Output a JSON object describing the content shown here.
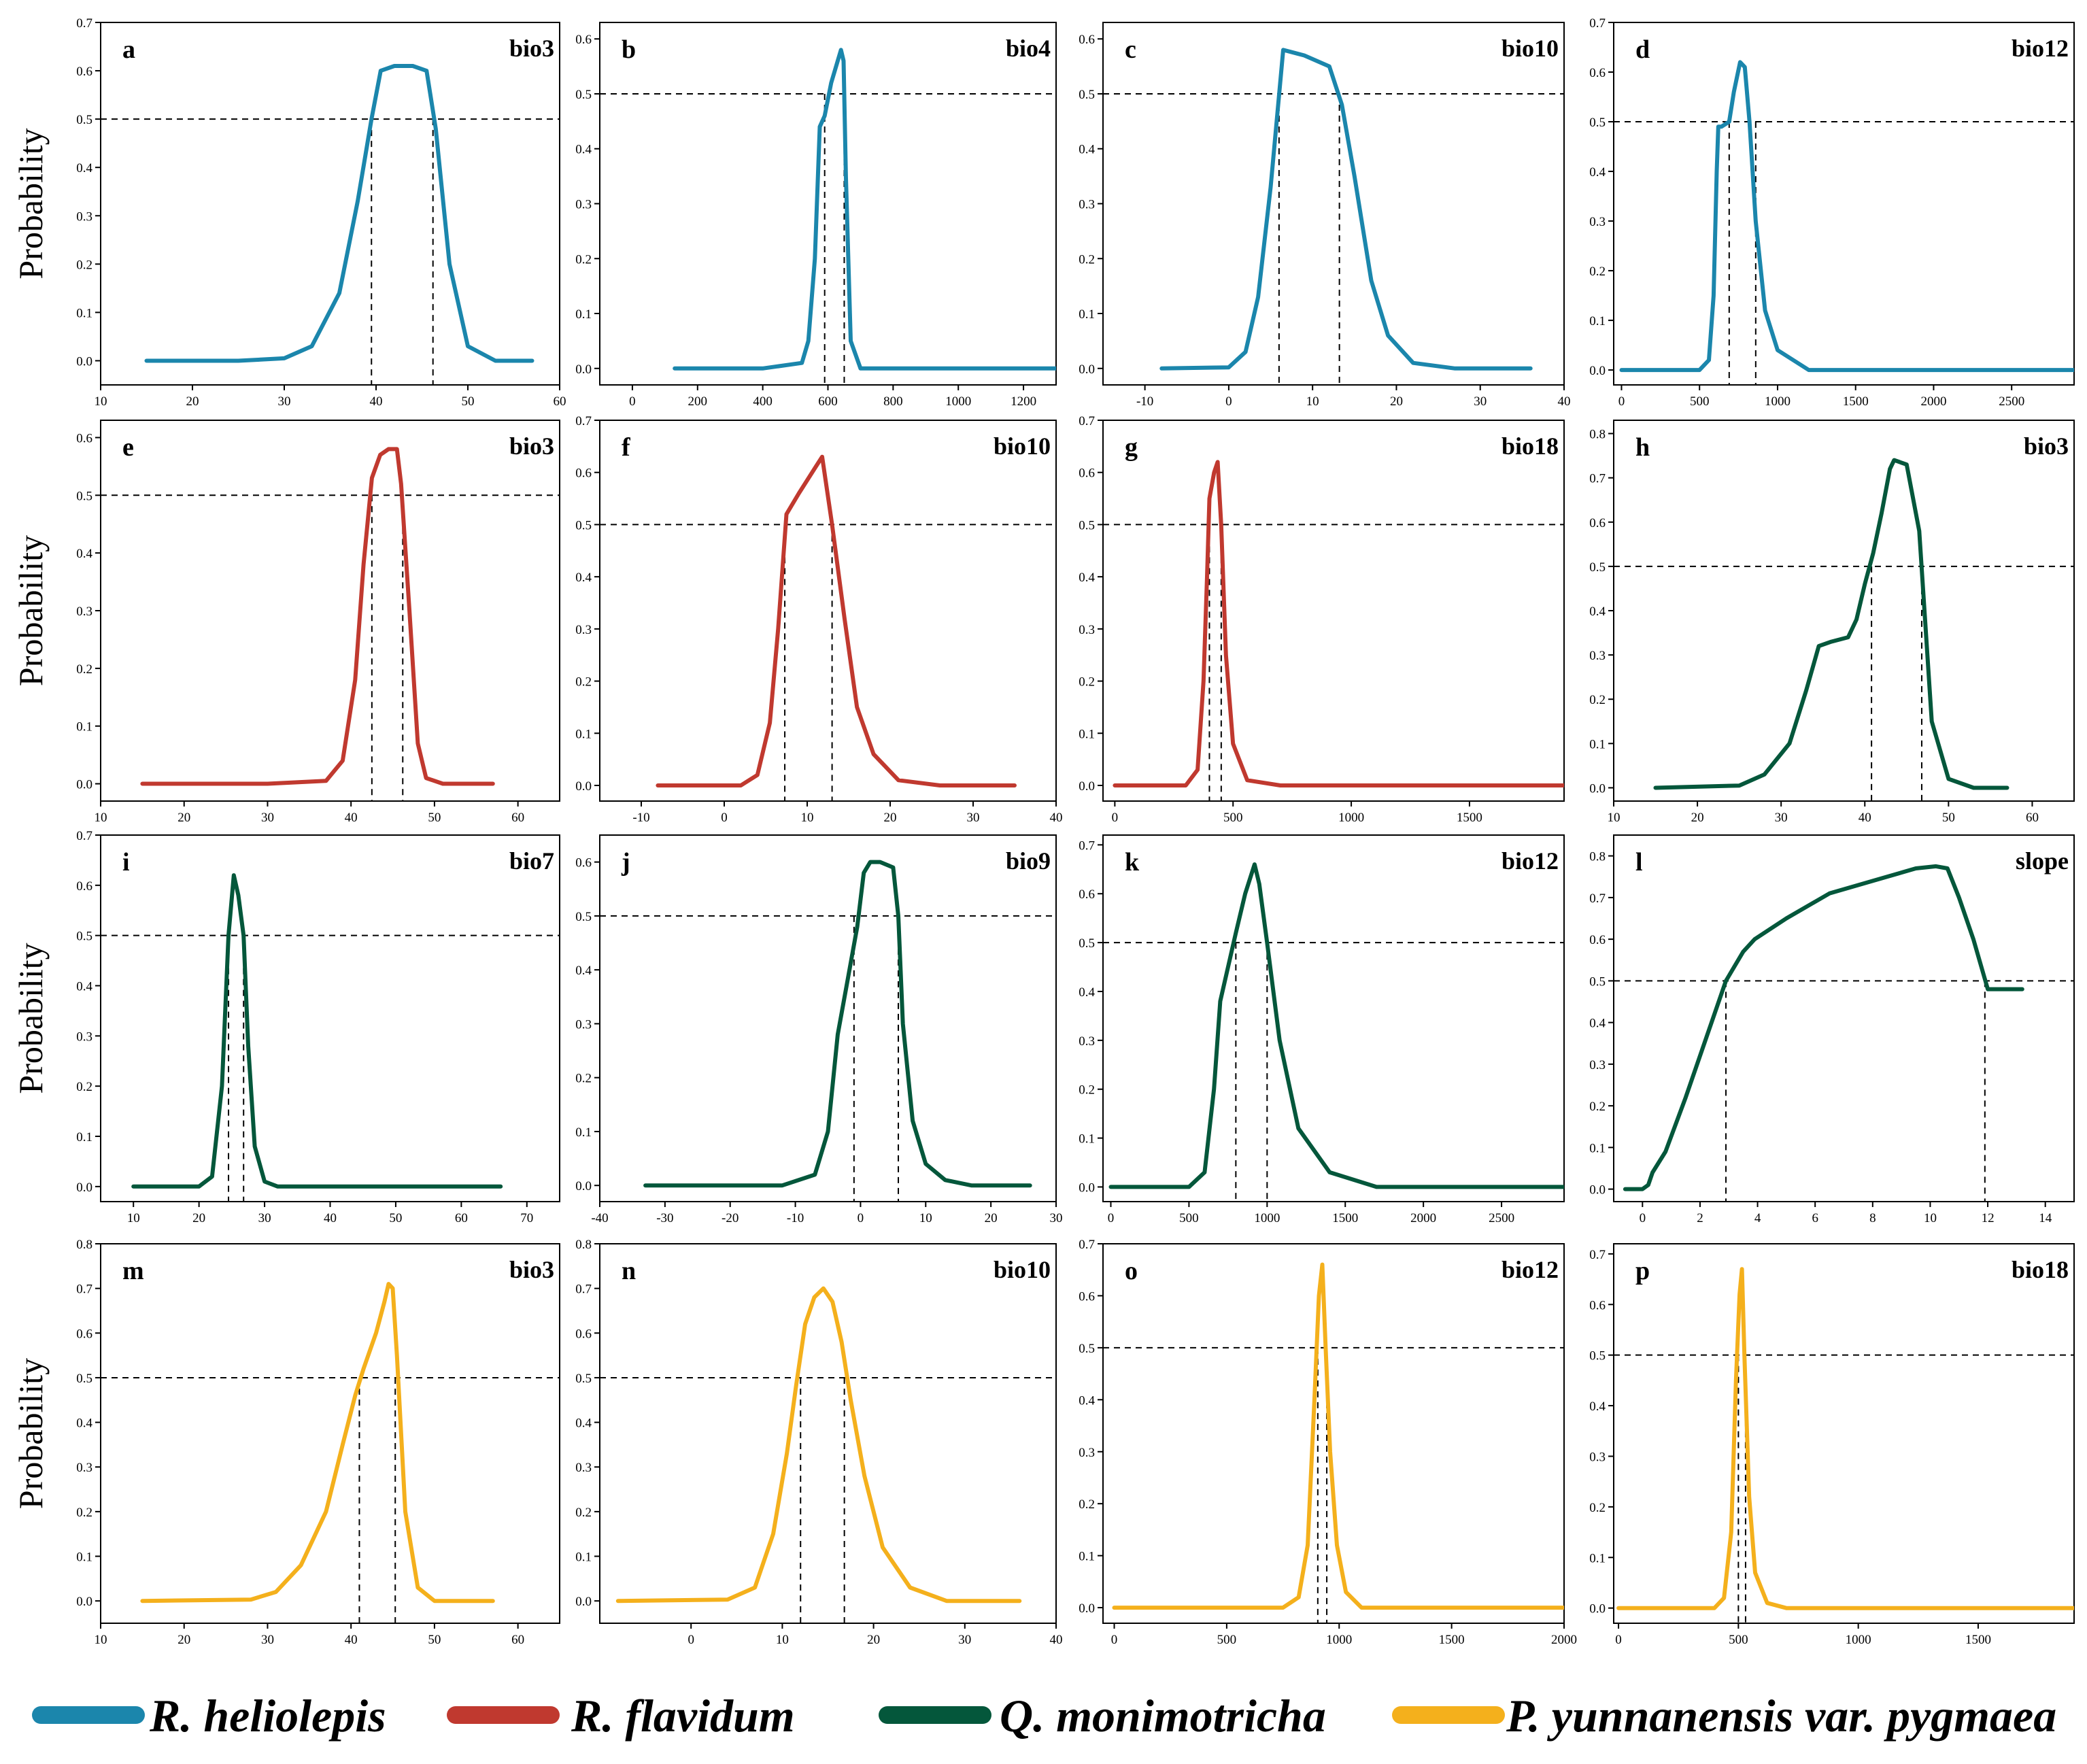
{
  "figure": {
    "y_axis_label": "Probability",
    "threshold": 0.5,
    "species_colors": {
      "R. heliolepis": "#1b86ac",
      "R. flavidum": "#c0392f",
      "Q. monimotricha": "#04573b",
      "P. yunnanensis var. pygmaea": "#f4b01c"
    }
  },
  "legend": {
    "items": [
      {
        "label": "R. heliolepis",
        "color": "#1b86ac"
      },
      {
        "label": "R. flavidum",
        "color": "#c0392f"
      },
      {
        "label": "Q. monimotricha",
        "color": "#04573b"
      },
      {
        "label": "P. yunnanensis var. pygmaea",
        "color": "#f4b01c"
      }
    ]
  },
  "chart_data": [
    {
      "type": "line",
      "panel": "a",
      "variable": "bio3",
      "species": "R. heliolepis",
      "color": "#1b86ac",
      "xlim": [
        10,
        60
      ],
      "ylim": [
        -0.05,
        0.7
      ],
      "xticks": [
        10,
        20,
        30,
        40,
        50,
        60
      ],
      "yticks": [
        0.0,
        0.1,
        0.2,
        0.3,
        0.4,
        0.5,
        0.6,
        0.7
      ],
      "x": [
        15,
        25,
        30,
        33,
        36,
        38,
        39.5,
        40.5,
        42,
        44,
        45.5,
        46.5,
        48,
        50,
        53,
        57
      ],
      "y": [
        0,
        0,
        0.005,
        0.03,
        0.14,
        0.33,
        0.5,
        0.6,
        0.61,
        0.61,
        0.6,
        0.48,
        0.2,
        0.03,
        0,
        0
      ],
      "cuts": [
        39.5,
        46.2
      ]
    },
    {
      "type": "line",
      "panel": "b",
      "variable": "bio4",
      "species": "R. heliolepis",
      "color": "#1b86ac",
      "xlim": [
        -100,
        1300
      ],
      "ylim": [
        -0.03,
        0.63
      ],
      "xticks": [
        0,
        200,
        400,
        600,
        800,
        1000,
        1200
      ],
      "yticks": [
        0.0,
        0.1,
        0.2,
        0.3,
        0.4,
        0.5,
        0.6
      ],
      "x": [
        130,
        400,
        520,
        540,
        560,
        575,
        590,
        610,
        630,
        640,
        648,
        655,
        670,
        700,
        800,
        1300
      ],
      "y": [
        0,
        0,
        0.01,
        0.05,
        0.2,
        0.44,
        0.46,
        0.52,
        0.56,
        0.58,
        0.56,
        0.35,
        0.05,
        0,
        0,
        0
      ],
      "cuts": [
        590,
        650
      ]
    },
    {
      "type": "line",
      "panel": "c",
      "variable": "bio10",
      "species": "R. heliolepis",
      "color": "#1b86ac",
      "xlim": [
        -15,
        40
      ],
      "ylim": [
        -0.03,
        0.63
      ],
      "xticks": [
        -10,
        0,
        10,
        20,
        30,
        40
      ],
      "yticks": [
        0.0,
        0.1,
        0.2,
        0.3,
        0.4,
        0.5,
        0.6
      ],
      "x": [
        -8,
        0,
        2,
        3.5,
        5,
        6.5,
        9,
        12,
        13.5,
        15,
        17,
        19,
        22,
        27,
        36
      ],
      "y": [
        0,
        0.002,
        0.03,
        0.13,
        0.33,
        0.58,
        0.57,
        0.55,
        0.48,
        0.35,
        0.16,
        0.06,
        0.01,
        0,
        0
      ],
      "cuts": [
        6.0,
        13.2
      ]
    },
    {
      "type": "line",
      "panel": "d",
      "variable": "bio12",
      "species": "R. heliolepis",
      "color": "#1b86ac",
      "xlim": [
        -50,
        2900
      ],
      "ylim": [
        -0.03,
        0.7
      ],
      "xticks": [
        0,
        500,
        1000,
        1500,
        2000,
        2500
      ],
      "yticks": [
        0.0,
        0.1,
        0.2,
        0.3,
        0.4,
        0.5,
        0.6,
        0.7
      ],
      "x": [
        0,
        500,
        560,
        590,
        610,
        620,
        640,
        690,
        720,
        760,
        790,
        820,
        860,
        920,
        1000,
        1200,
        2900
      ],
      "y": [
        0,
        0,
        0.02,
        0.15,
        0.4,
        0.49,
        0.49,
        0.5,
        0.56,
        0.62,
        0.61,
        0.5,
        0.3,
        0.12,
        0.04,
        0,
        0
      ],
      "cuts": [
        690,
        860
      ]
    },
    {
      "type": "line",
      "panel": "e",
      "variable": "bio3",
      "species": "R. flavidum",
      "color": "#c0392f",
      "xlim": [
        10,
        65
      ],
      "ylim": [
        -0.03,
        0.63
      ],
      "xticks": [
        10,
        20,
        30,
        40,
        50,
        60
      ],
      "yticks": [
        0.0,
        0.1,
        0.2,
        0.3,
        0.4,
        0.5,
        0.6
      ],
      "x": [
        15,
        30,
        37,
        39,
        40.5,
        41.5,
        42.5,
        43.5,
        44.5,
        45.5,
        46,
        47,
        48,
        49,
        51,
        57
      ],
      "y": [
        0,
        0,
        0.005,
        0.04,
        0.18,
        0.38,
        0.53,
        0.57,
        0.58,
        0.58,
        0.52,
        0.3,
        0.07,
        0.01,
        0,
        0
      ],
      "cuts": [
        42.5,
        46.2
      ]
    },
    {
      "type": "line",
      "panel": "f",
      "variable": "bio10",
      "species": "R. flavidum",
      "color": "#c0392f",
      "xlim": [
        -15,
        40
      ],
      "ylim": [
        -0.03,
        0.7
      ],
      "xticks": [
        -10,
        0,
        10,
        20,
        30,
        40
      ],
      "yticks": [
        0.0,
        0.1,
        0.2,
        0.3,
        0.4,
        0.5,
        0.6,
        0.7
      ],
      "x": [
        -8,
        2,
        4,
        5.5,
        6.5,
        7.5,
        9,
        11,
        11.8,
        13,
        14.5,
        16,
        18,
        21,
        26,
        35
      ],
      "y": [
        0,
        0,
        0.02,
        0.12,
        0.3,
        0.52,
        0.56,
        0.61,
        0.63,
        0.5,
        0.32,
        0.15,
        0.06,
        0.01,
        0,
        0
      ],
      "cuts": [
        7.3,
        13.0
      ]
    },
    {
      "type": "line",
      "panel": "g",
      "variable": "bio18",
      "species": "R. flavidum",
      "color": "#c0392f",
      "xlim": [
        -50,
        1900
      ],
      "ylim": [
        -0.03,
        0.7
      ],
      "xticks": [
        0,
        500,
        1000,
        1500
      ],
      "yticks": [
        0.0,
        0.1,
        0.2,
        0.3,
        0.4,
        0.5,
        0.6,
        0.7
      ],
      "x": [
        0,
        300,
        350,
        375,
        390,
        400,
        420,
        435,
        450,
        470,
        500,
        560,
        700,
        1900
      ],
      "y": [
        0,
        0,
        0.03,
        0.2,
        0.4,
        0.55,
        0.6,
        0.62,
        0.5,
        0.25,
        0.08,
        0.01,
        0,
        0
      ],
      "cuts": [
        400,
        450
      ]
    },
    {
      "type": "line",
      "panel": "h",
      "variable": "bio3",
      "species": "Q. monimotricha",
      "color": "#04573b",
      "xlim": [
        10,
        65
      ],
      "ylim": [
        -0.03,
        0.83
      ],
      "xticks": [
        10,
        20,
        30,
        40,
        50,
        60
      ],
      "yticks": [
        0.0,
        0.1,
        0.2,
        0.3,
        0.4,
        0.5,
        0.6,
        0.7,
        0.8
      ],
      "x": [
        15,
        25,
        28,
        31,
        33,
        34.5,
        36,
        38,
        39,
        40,
        41,
        42,
        43,
        43.5,
        45,
        46.5,
        48,
        50,
        53,
        57
      ],
      "y": [
        0,
        0.005,
        0.03,
        0.1,
        0.22,
        0.32,
        0.33,
        0.34,
        0.38,
        0.46,
        0.53,
        0.62,
        0.72,
        0.74,
        0.73,
        0.58,
        0.15,
        0.02,
        0,
        0
      ],
      "cuts": [
        40.8,
        46.8
      ]
    },
    {
      "type": "line",
      "panel": "i",
      "variable": "bio7",
      "species": "Q. monimotricha",
      "color": "#04573b",
      "xlim": [
        5,
        75
      ],
      "ylim": [
        -0.03,
        0.7
      ],
      "xticks": [
        10,
        20,
        30,
        40,
        50,
        60,
        70
      ],
      "yticks": [
        0.0,
        0.1,
        0.2,
        0.3,
        0.4,
        0.5,
        0.6,
        0.7
      ],
      "x": [
        10,
        20,
        22,
        23.5,
        24.5,
        25.3,
        26,
        26.8,
        27.5,
        28.5,
        30,
        32,
        66
      ],
      "y": [
        0,
        0,
        0.02,
        0.2,
        0.5,
        0.62,
        0.58,
        0.5,
        0.28,
        0.08,
        0.01,
        0,
        0
      ],
      "cuts": [
        24.5,
        26.8
      ]
    },
    {
      "type": "line",
      "panel": "j",
      "variable": "bio9",
      "species": "Q. monimotricha",
      "color": "#04573b",
      "xlim": [
        -40,
        30
      ],
      "ylim": [
        -0.03,
        0.65
      ],
      "xticks": [
        -40,
        -30,
        -20,
        -10,
        0,
        10,
        20,
        30
      ],
      "yticks": [
        0.0,
        0.1,
        0.2,
        0.3,
        0.4,
        0.5,
        0.6
      ],
      "x": [
        -33,
        -12,
        -7,
        -5,
        -3.5,
        -2,
        -0.5,
        0.5,
        1.5,
        3,
        5,
        5.8,
        6.5,
        8,
        10,
        13,
        17,
        26
      ],
      "y": [
        0,
        0,
        0.02,
        0.1,
        0.28,
        0.38,
        0.48,
        0.58,
        0.6,
        0.6,
        0.59,
        0.5,
        0.3,
        0.12,
        0.04,
        0.01,
        0,
        0
      ],
      "cuts": [
        -1.0,
        5.8
      ]
    },
    {
      "type": "line",
      "panel": "k",
      "variable": "bio12",
      "species": "Q. monimotricha",
      "color": "#04573b",
      "xlim": [
        -50,
        2900
      ],
      "ylim": [
        -0.03,
        0.72
      ],
      "xticks": [
        0,
        500,
        1000,
        1500,
        2000,
        2500
      ],
      "yticks": [
        0.0,
        0.1,
        0.2,
        0.3,
        0.4,
        0.5,
        0.6,
        0.7
      ],
      "x": [
        0,
        500,
        600,
        660,
        700,
        750,
        800,
        860,
        920,
        950,
        1000,
        1080,
        1200,
        1400,
        1700,
        2900
      ],
      "y": [
        0,
        0,
        0.03,
        0.2,
        0.38,
        0.45,
        0.52,
        0.6,
        0.66,
        0.62,
        0.5,
        0.3,
        0.12,
        0.03,
        0,
        0
      ],
      "cuts": [
        800,
        1000
      ]
    },
    {
      "type": "line",
      "panel": "l",
      "variable": "slope",
      "species": "Q. monimotricha",
      "color": "#04573b",
      "xlim": [
        -1,
        15
      ],
      "ylim": [
        -0.03,
        0.85
      ],
      "xticks": [
        0,
        2,
        4,
        6,
        8,
        10,
        12,
        14
      ],
      "yticks": [
        0.0,
        0.1,
        0.2,
        0.3,
        0.4,
        0.5,
        0.6,
        0.7,
        0.8
      ],
      "x": [
        -0.6,
        0,
        0.2,
        0.35,
        0.8,
        1.5,
        2.2,
        2.9,
        3.5,
        3.9,
        5,
        6.5,
        8,
        9.5,
        10.2,
        10.6,
        11,
        11.5,
        12,
        13.2
      ],
      "y": [
        0,
        0,
        0.01,
        0.04,
        0.09,
        0.22,
        0.36,
        0.5,
        0.57,
        0.6,
        0.65,
        0.71,
        0.74,
        0.77,
        0.775,
        0.77,
        0.7,
        0.6,
        0.48,
        0.48
      ],
      "cuts": [
        2.9,
        11.9
      ]
    },
    {
      "type": "line",
      "panel": "m",
      "variable": "bio3",
      "species": "P. yunnanensis var. pygmaea",
      "color": "#f4b01c",
      "xlim": [
        10,
        65
      ],
      "ylim": [
        -0.05,
        0.8
      ],
      "xticks": [
        10,
        20,
        30,
        40,
        50,
        60
      ],
      "yticks": [
        0.0,
        0.1,
        0.2,
        0.3,
        0.4,
        0.5,
        0.6,
        0.7,
        0.8
      ],
      "x": [
        15,
        28,
        31,
        34,
        37,
        39,
        40.5,
        41.5,
        43,
        44,
        44.5,
        45,
        45.5,
        46.5,
        48,
        50,
        57
      ],
      "y": [
        0,
        0.003,
        0.02,
        0.08,
        0.2,
        0.35,
        0.46,
        0.52,
        0.6,
        0.67,
        0.71,
        0.7,
        0.55,
        0.2,
        0.03,
        0,
        0
      ],
      "cuts": [
        41.0,
        45.3
      ]
    },
    {
      "type": "line",
      "panel": "n",
      "variable": "bio10",
      "species": "P. yunnanensis var. pygmaea",
      "color": "#f4b01c",
      "xlim": [
        -10,
        40
      ],
      "ylim": [
        -0.05,
        0.8
      ],
      "xticks": [
        0,
        10,
        20,
        30,
        40
      ],
      "yticks": [
        0.0,
        0.1,
        0.2,
        0.3,
        0.4,
        0.5,
        0.6,
        0.7,
        0.8
      ],
      "x": [
        -8,
        4,
        7,
        9,
        10.5,
        11.5,
        12.5,
        13.5,
        14.5,
        15.5,
        16.5,
        17.5,
        19,
        21,
        24,
        28,
        36
      ],
      "y": [
        0,
        0.003,
        0.03,
        0.15,
        0.33,
        0.48,
        0.62,
        0.68,
        0.7,
        0.67,
        0.58,
        0.45,
        0.28,
        0.12,
        0.03,
        0,
        0
      ],
      "cuts": [
        12.0,
        16.8
      ]
    },
    {
      "type": "line",
      "panel": "o",
      "variable": "bio12",
      "species": "P. yunnanensis var. pygmaea",
      "color": "#f4b01c",
      "xlim": [
        -50,
        2000
      ],
      "ylim": [
        -0.03,
        0.7
      ],
      "xticks": [
        0,
        500,
        1000,
        1500,
        2000
      ],
      "yticks": [
        0.0,
        0.1,
        0.2,
        0.3,
        0.4,
        0.5,
        0.6,
        0.7
      ],
      "x": [
        0,
        750,
        820,
        860,
        890,
        910,
        925,
        940,
        960,
        990,
        1030,
        1100,
        2000
      ],
      "y": [
        0,
        0,
        0.02,
        0.12,
        0.4,
        0.6,
        0.66,
        0.5,
        0.3,
        0.12,
        0.03,
        0,
        0
      ],
      "cuts": [
        905,
        945
      ]
    },
    {
      "type": "line",
      "panel": "p",
      "variable": "bio18",
      "species": "P. yunnanensis var. pygmaea",
      "color": "#f4b01c",
      "xlim": [
        -20,
        1900
      ],
      "ylim": [
        -0.03,
        0.72
      ],
      "xticks": [
        0,
        500,
        1000,
        1500
      ],
      "yticks": [
        0.0,
        0.1,
        0.2,
        0.3,
        0.4,
        0.5,
        0.6,
        0.7
      ],
      "x": [
        0,
        400,
        440,
        470,
        490,
        505,
        515,
        525,
        545,
        570,
        620,
        700,
        1900
      ],
      "y": [
        0,
        0,
        0.02,
        0.15,
        0.45,
        0.62,
        0.67,
        0.5,
        0.22,
        0.07,
        0.01,
        0,
        0
      ],
      "cuts": [
        500,
        530
      ]
    }
  ]
}
